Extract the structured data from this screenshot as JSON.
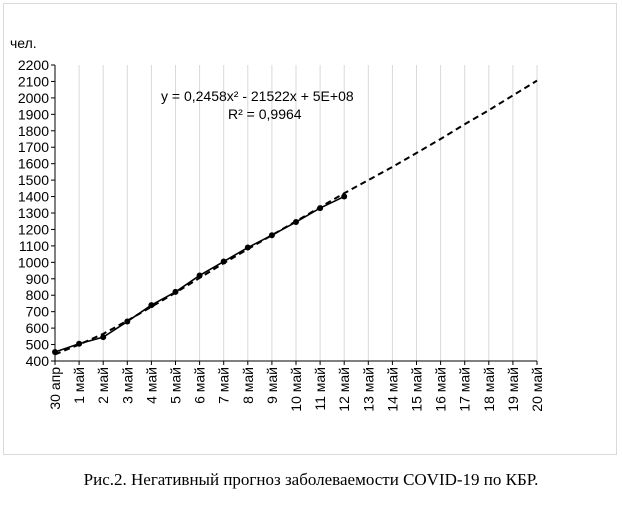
{
  "chart_data": {
    "type": "line",
    "ylabel": "чел.",
    "x_categories": [
      "30 апр",
      "1 май",
      "2 май",
      "3 май",
      "4 май",
      "5 май",
      "6 май",
      "7 май",
      "8 май",
      "9 май",
      "10 май",
      "11 май",
      "12 май",
      "13 май",
      "14 май",
      "15 май",
      "16 май",
      "17 май",
      "18 май",
      "19 май",
      "20 май"
    ],
    "ylim": [
      400,
      2200
    ],
    "y_ticks": [
      400,
      500,
      600,
      700,
      800,
      900,
      1000,
      1100,
      1200,
      1300,
      1400,
      1500,
      1600,
      1700,
      1800,
      1900,
      2000,
      2100,
      2200
    ],
    "grid": "vertical",
    "series": [
      {
        "style": "solid-line-with-markers",
        "color": "#000000",
        "values": [
          455,
          505,
          545,
          640,
          740,
          820,
          920,
          1005,
          1090,
          1165,
          1245,
          1330,
          1400
        ]
      },
      {
        "style": "dashed-trendline",
        "color": "#000000",
        "fit": "polynomial-2",
        "values": [
          440,
          500,
          565,
          645,
          730,
          815,
          905,
          995,
          1080,
          1165,
          1250,
          1335,
          1420,
          1500,
          1580,
          1665,
          1750,
          1840,
          1925,
          2015,
          2105
        ]
      }
    ],
    "annotations": {
      "equation": "y = 0,2458x² - 21522x + 5E+08",
      "r_squared": "R² = 0,9964"
    }
  },
  "caption": "Рис.2. Негативный прогноз заболеваемости COVID-19 по КБР."
}
